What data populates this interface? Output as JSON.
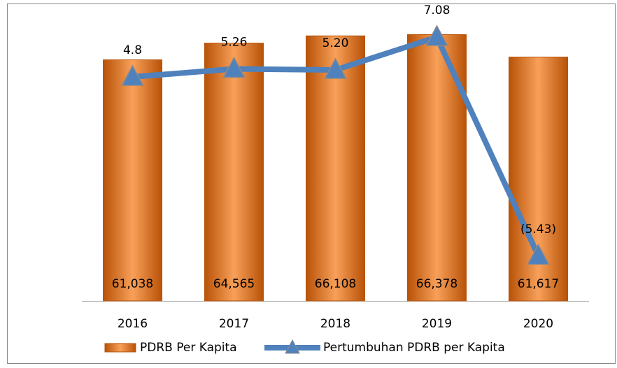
{
  "chart_data": {
    "type": "bar-line",
    "categories": [
      "2016",
      "2017",
      "2018",
      "2019",
      "2020"
    ],
    "series": [
      {
        "name": "PDRB Per Kapita",
        "type": "bar",
        "color": "#e46c0a",
        "values": [
          61038,
          64565,
          66108,
          66378,
          61617
        ],
        "value_labels": [
          "61,038",
          "64,565",
          "66,108",
          "66,378",
          "61,617"
        ]
      },
      {
        "name": "Pertumbuhan PDRB per Kapita",
        "type": "line",
        "axis": "y2",
        "color": "#4f81bd",
        "values": [
          4.8,
          5.26,
          5.2,
          7.08,
          -5.43
        ],
        "value_labels": [
          "4.8",
          "5.26",
          "5.20",
          "7.08",
          "(5.43)"
        ]
      }
    ],
    "ylim": [
      10000,
      70000
    ],
    "y2lim": [
      -8,
      8.2
    ],
    "legend": "bottom"
  }
}
